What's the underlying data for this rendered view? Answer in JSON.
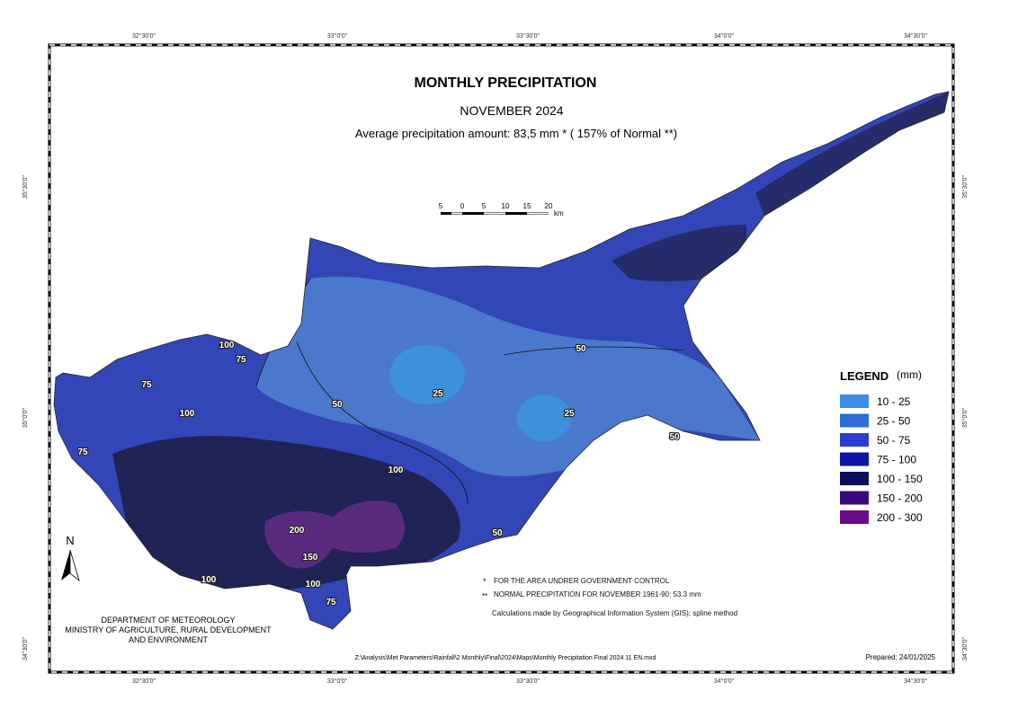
{
  "header": {
    "title": "MONTHLY PRECIPITATION",
    "subtitle": "NOVEMBER 2024",
    "summary": "Average precipitation amount: 83,5 mm *  ( 157% of Normal **)"
  },
  "scale_bar": {
    "labels": [
      "5",
      "0",
      "5",
      "10",
      "15",
      "20"
    ],
    "unit": "km"
  },
  "north": "N",
  "legend": {
    "title": "LEGEND",
    "unit": "(mm)",
    "items": [
      {
        "label": "10 - 25",
        "color": "#3a8ee6"
      },
      {
        "label": "25 - 50",
        "color": "#2e6cd6"
      },
      {
        "label": "50 - 75",
        "color": "#2a3ecf"
      },
      {
        "label": "75 - 100",
        "color": "#0a14a8"
      },
      {
        "label": "100 - 150",
        "color": "#0c0f5c"
      },
      {
        "label": "150 - 200",
        "color": "#3a0a7a"
      },
      {
        "label": "200 - 300",
        "color": "#6a0a8a"
      }
    ]
  },
  "contour_labels": [
    "100",
    "75",
    "75",
    "100",
    "75",
    "50",
    "25",
    "50",
    "25",
    "50",
    "100",
    "200",
    "150",
    "100",
    "100",
    "75",
    "50"
  ],
  "footnotes": {
    "mark1": "*",
    "note1": "FOR THE AREA UNDRER GOVERNMENT CONTROL",
    "mark2": "**",
    "note2": "NORMAL PRECIPITATION FOR NOVEMBER 1961-90: 53.3 mm",
    "method": "Calculations made by Geographical Information System (GIS); spline method"
  },
  "department": [
    "DEPARTMENT OF METEOROLOGY",
    "MINISTRY OF AGRICULTURE, RURAL DEVELOPMENT",
    "AND ENVIRONMENT"
  ],
  "file_path": "Z:\\Analysis\\Met  Parameters\\Rainfall\\2  Monthly\\Final\\2024\\Maps\\Monthly  Precipitation  Final  2024  11  EN.mxd",
  "prepared": "Prepared: 24/01/2025",
  "graticule": {
    "longitudes": [
      "32°30'0\"",
      "33°0'0\"",
      "33°30'0\"",
      "34°0'0\"",
      "34°30'0\""
    ],
    "latitudes": [
      "35°30'0\"",
      "35°0'0\"",
      "34°30'0\""
    ]
  }
}
